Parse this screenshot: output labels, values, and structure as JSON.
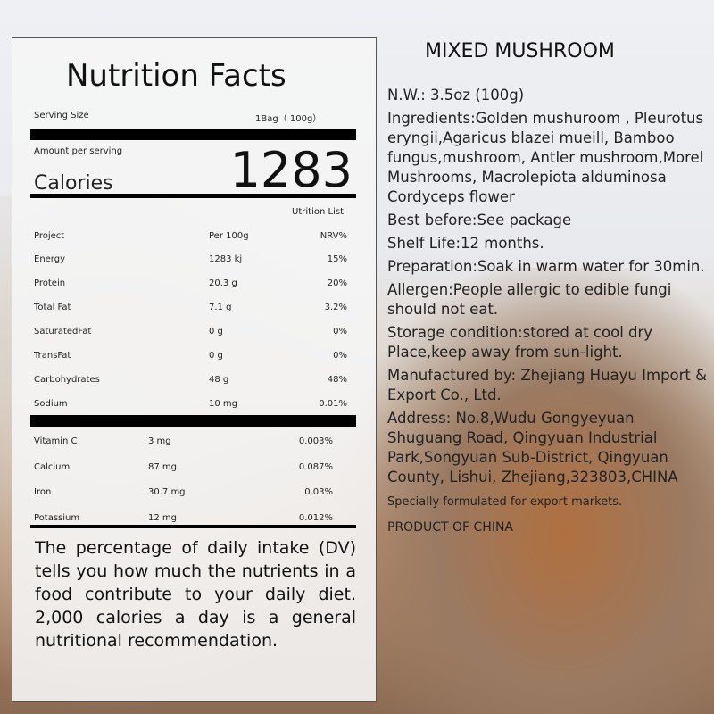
{
  "panel": {
    "title": "Nutrition Facts",
    "serving_label": "Serving Size",
    "serving_value": "1Bag（ 100g）",
    "amount_label": "Amount per serving",
    "calories_label": "Calories",
    "calories_value": "1283",
    "list_label": "Utrition List",
    "headers": [
      "Project",
      "Per 100g",
      "NRV%"
    ],
    "rows": [
      [
        "Energy",
        "1283 kj",
        "15%"
      ],
      [
        "Protein",
        "20.3 g",
        "20%"
      ],
      [
        "Total Fat",
        "7.1  g",
        "3.2%"
      ],
      [
        "SaturatedFat",
        "0   g",
        "0%"
      ],
      [
        "TransFat",
        "0   g",
        "0%"
      ],
      [
        "Carbohydrates",
        "48  g",
        "48%"
      ],
      [
        "Sodium",
        "10 mg",
        "0.01%"
      ]
    ],
    "vitamins": [
      [
        "Vitamin C",
        "3 mg",
        "0.003%"
      ],
      [
        "Calcium",
        "87 mg",
        "0.087%"
      ],
      [
        "Iron",
        "30.7 mg",
        "0.03%"
      ],
      [
        "Potassium",
        "12 mg",
        "0.012%"
      ]
    ],
    "footnote": "The percentage of daily intake (DV) tells you how much the nutrients in a food contribute to your daily diet. 2,000 calories a day is a general nutritional recommendation."
  },
  "info": {
    "title": "MIXED MUSHROOM",
    "lines": [
      "N.W.: 3.5oz (100g)",
      "Ingredients:Golden mushuroom , Pleurotus eryngii,Agaricus blazei mueill, Bamboo fungus,mushroom, Antler mushroom,Morel Mushrooms, Macrolepiota alduminosa Cordyceps flower",
      "Best before:See package",
      "Shelf Life:12 months.",
      "Preparation:Soak in warm water for 30min.",
      "Allergen:People allergic to edible fungi should not eat.",
      "Storage condition:stored at cool dry Place,keep away from sun-light.",
      "Manufactured by: Zhejiang Huayu Import & Export Co., Ltd.",
      "Address: No.8,Wudu Gongyeyuan Shuguang Road, Qingyuan Industrial Park,Songyuan Sub-District, Qingyuan County, Lishui, Zhejiang,323803,CHINA"
    ],
    "note": "Specially formulated for export markets.",
    "origin": "PRODUCT OF CHINA"
  }
}
